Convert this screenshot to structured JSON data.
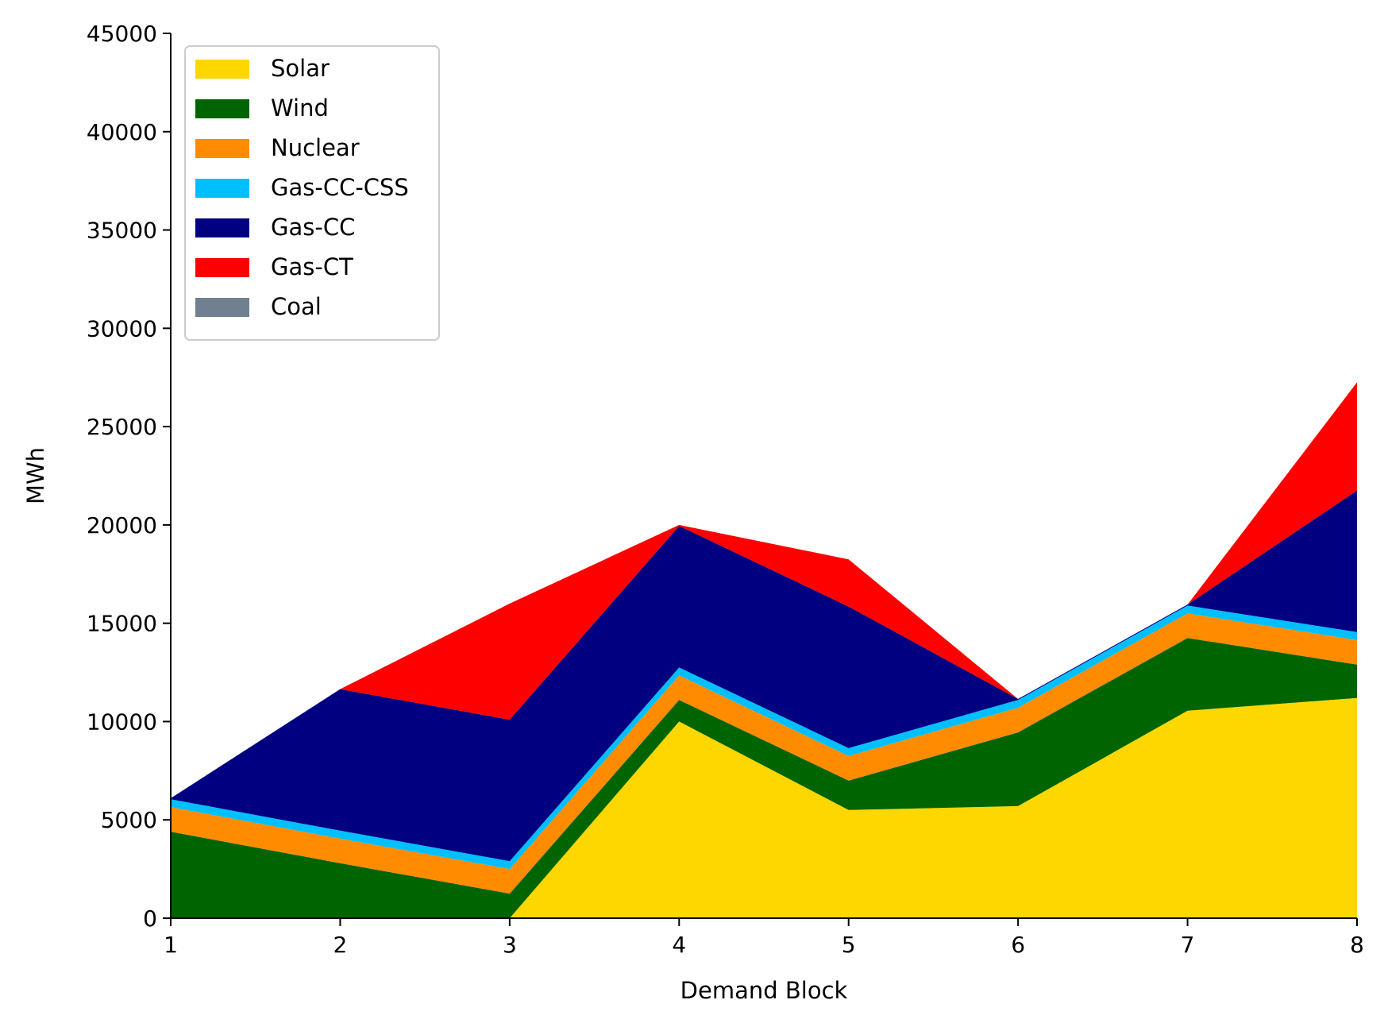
{
  "chart_data": {
    "type": "area",
    "stacked": true,
    "title": "",
    "xlabel": "Demand Block",
    "ylabel": "MWh",
    "x": [
      1,
      2,
      3,
      4,
      5,
      6,
      7,
      8
    ],
    "xticks": [
      "1",
      "2",
      "3",
      "4",
      "5",
      "6",
      "7",
      "8"
    ],
    "yticks": [
      "0",
      "5000",
      "10000",
      "15000",
      "20000",
      "25000",
      "30000",
      "35000",
      "40000",
      "45000"
    ],
    "xlim": [
      1,
      8
    ],
    "ylim": [
      0,
      45000
    ],
    "grid": false,
    "legend_position": "top-left",
    "series": [
      {
        "name": "Solar",
        "color": "#FFD700",
        "values": [
          0,
          0,
          0,
          10000,
          5500,
          5700,
          10550,
          11200
        ]
      },
      {
        "name": "Wind",
        "color": "#006400",
        "values": [
          4400,
          2800,
          1250,
          1100,
          1500,
          3750,
          3700,
          1700
        ]
      },
      {
        "name": "Nuclear",
        "color": "#FF8C00",
        "values": [
          1250,
          1250,
          1250,
          1250,
          1250,
          1250,
          1250,
          1250
        ]
      },
      {
        "name": "Gas-CC-CSS",
        "color": "#00BFFF",
        "values": [
          400,
          400,
          400,
          400,
          400,
          400,
          400,
          400
        ]
      },
      {
        "name": "Gas-CC",
        "color": "#000080",
        "values": [
          50,
          7200,
          7200,
          7200,
          7200,
          50,
          50,
          7200
        ]
      },
      {
        "name": "Gas-CT",
        "color": "#FF0000",
        "values": [
          0,
          0,
          5900,
          50,
          2400,
          0,
          0,
          5500
        ]
      },
      {
        "name": "Coal",
        "color": "#708090",
        "values": [
          0,
          0,
          0,
          0,
          0,
          0,
          0,
          0
        ]
      }
    ]
  }
}
